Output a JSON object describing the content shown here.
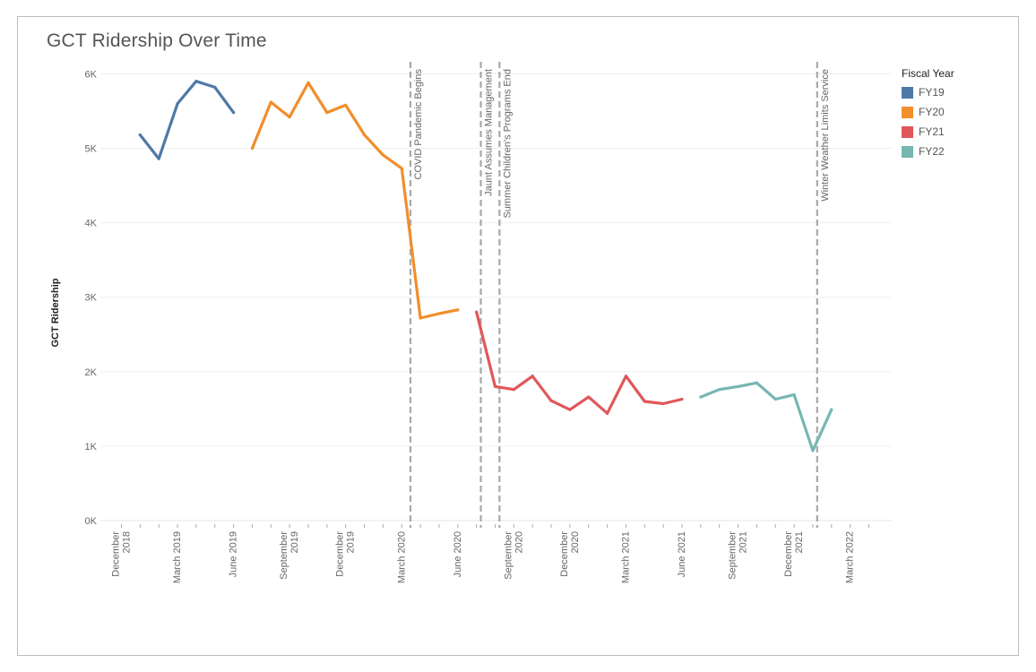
{
  "title": "GCT Ridership Over Time",
  "chart_data": {
    "type": "line",
    "title": "GCT Ridership Over Time",
    "xlabel": "",
    "ylabel": "GCT Ridership",
    "ylim": [
      0,
      6000
    ],
    "y_ticks": [
      "0K",
      "1K",
      "2K",
      "3K",
      "4K",
      "5K",
      "6K"
    ],
    "x_ticks": [
      "December 2018",
      "March 2019",
      "June 2019",
      "September 2019",
      "December 2019",
      "March 2020",
      "June 2020",
      "September 2020",
      "December 2020",
      "March 2021",
      "June 2021",
      "September 2021",
      "December 2021",
      "March 2022"
    ],
    "grid": true,
    "legend": {
      "title": "Fiscal Year",
      "placement": "right"
    },
    "series": [
      {
        "name": "FY19",
        "color": "#4e79a7",
        "x": [
          "2019-01",
          "2019-02",
          "2019-03",
          "2019-04",
          "2019-05",
          "2019-06"
        ],
        "values": [
          5180,
          4860,
          5600,
          5900,
          5820,
          5480
        ]
      },
      {
        "name": "FY20",
        "color": "#f28e2b",
        "x": [
          "2019-07",
          "2019-08",
          "2019-09",
          "2019-10",
          "2019-11",
          "2019-12",
          "2020-01",
          "2020-02",
          "2020-03",
          "2020-04",
          "2020-05",
          "2020-06"
        ],
        "values": [
          5000,
          5620,
          5420,
          5880,
          5480,
          5580,
          5180,
          4910,
          4730,
          2720,
          2780,
          2830
        ]
      },
      {
        "name": "FY21",
        "color": "#e15759",
        "x": [
          "2020-07",
          "2020-08",
          "2020-09",
          "2020-10",
          "2020-11",
          "2020-12",
          "2021-01",
          "2021-02",
          "2021-03",
          "2021-04",
          "2021-05",
          "2021-06"
        ],
        "values": [
          2800,
          1800,
          1760,
          1940,
          1610,
          1490,
          1660,
          1440,
          1940,
          1600,
          1570,
          1630
        ]
      },
      {
        "name": "FY22",
        "color": "#76b7b2",
        "x": [
          "2021-07",
          "2021-08",
          "2021-09",
          "2021-10",
          "2021-11",
          "2021-12",
          "2022-01",
          "2022-02"
        ],
        "values": [
          1660,
          1760,
          1800,
          1850,
          1630,
          1690,
          940,
          1490
        ]
      }
    ],
    "annotations": [
      {
        "x": "2020-03-15",
        "label": "COVID Pandemic Begins"
      },
      {
        "x": "2020-07-08",
        "label": "Jaunt Assumes Management"
      },
      {
        "x": "2020-08-08",
        "label": "Summer Children's Programs End"
      },
      {
        "x": "2022-01-08",
        "label": "Winter Weather Limits Service"
      }
    ]
  }
}
